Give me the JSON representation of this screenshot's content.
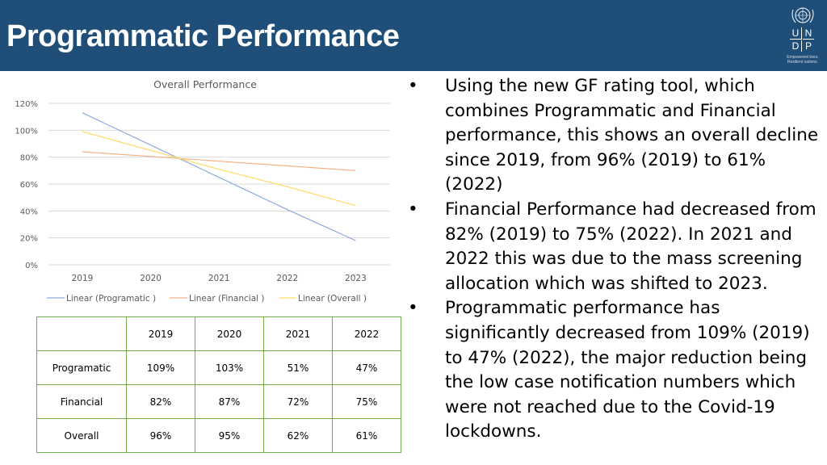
{
  "header": {
    "title": "Programmatic Performance"
  },
  "logo": {
    "letters": [
      "U",
      "N",
      "D",
      "P"
    ],
    "tagline": [
      "Empowered lives.",
      "Resilient nations."
    ]
  },
  "chart_data": {
    "type": "line",
    "title": "Overall Performance",
    "categories": [
      "2019",
      "2020",
      "2021",
      "2022",
      "2023"
    ],
    "y_ticks": [
      "0%",
      "20%",
      "40%",
      "60%",
      "80%",
      "100%",
      "120%"
    ],
    "ylim": [
      0,
      120
    ],
    "y_unit": "%",
    "legend_position": "bottom",
    "series": [
      {
        "name": "Linear (Programatic )",
        "color": "#8faadc",
        "values": [
          113,
          89,
          65,
          41,
          18
        ]
      },
      {
        "name": "Linear (Financial )",
        "color": "#f4b183",
        "values": [
          84,
          80.5,
          77,
          73.5,
          70
        ]
      },
      {
        "name": "Linear (Overall )",
        "color": "#ffd966",
        "values": [
          99,
          85,
          71,
          58,
          44
        ]
      }
    ]
  },
  "table": {
    "header": [
      "",
      "2019",
      "2020",
      "2021",
      "2022"
    ],
    "rows": [
      [
        "Programatic",
        "109%",
        "103%",
        "51%",
        "47%"
      ],
      [
        "Financial",
        "82%",
        "87%",
        "72%",
        "75%"
      ],
      [
        "Overall",
        "96%",
        "95%",
        "62%",
        "61%"
      ]
    ]
  },
  "bullets": [
    "Using the new GF rating tool, which combines Programmatic and Financial performance, this shows an overall decline since 2019, from 96% (2019) to 61% (2022)",
    "Financial Performance had decreased from 82% (2019) to 75% (2022). In 2021 and 2022 this was due to the mass screening allocation which was shifted to 2023.",
    "Programmatic performance has significantly decreased from 109% (2019) to 47% (2022), the major reduction being the low case notification numbers which were not reached due to the Covid-19 lockdowns."
  ],
  "bullet_symbol": "•"
}
